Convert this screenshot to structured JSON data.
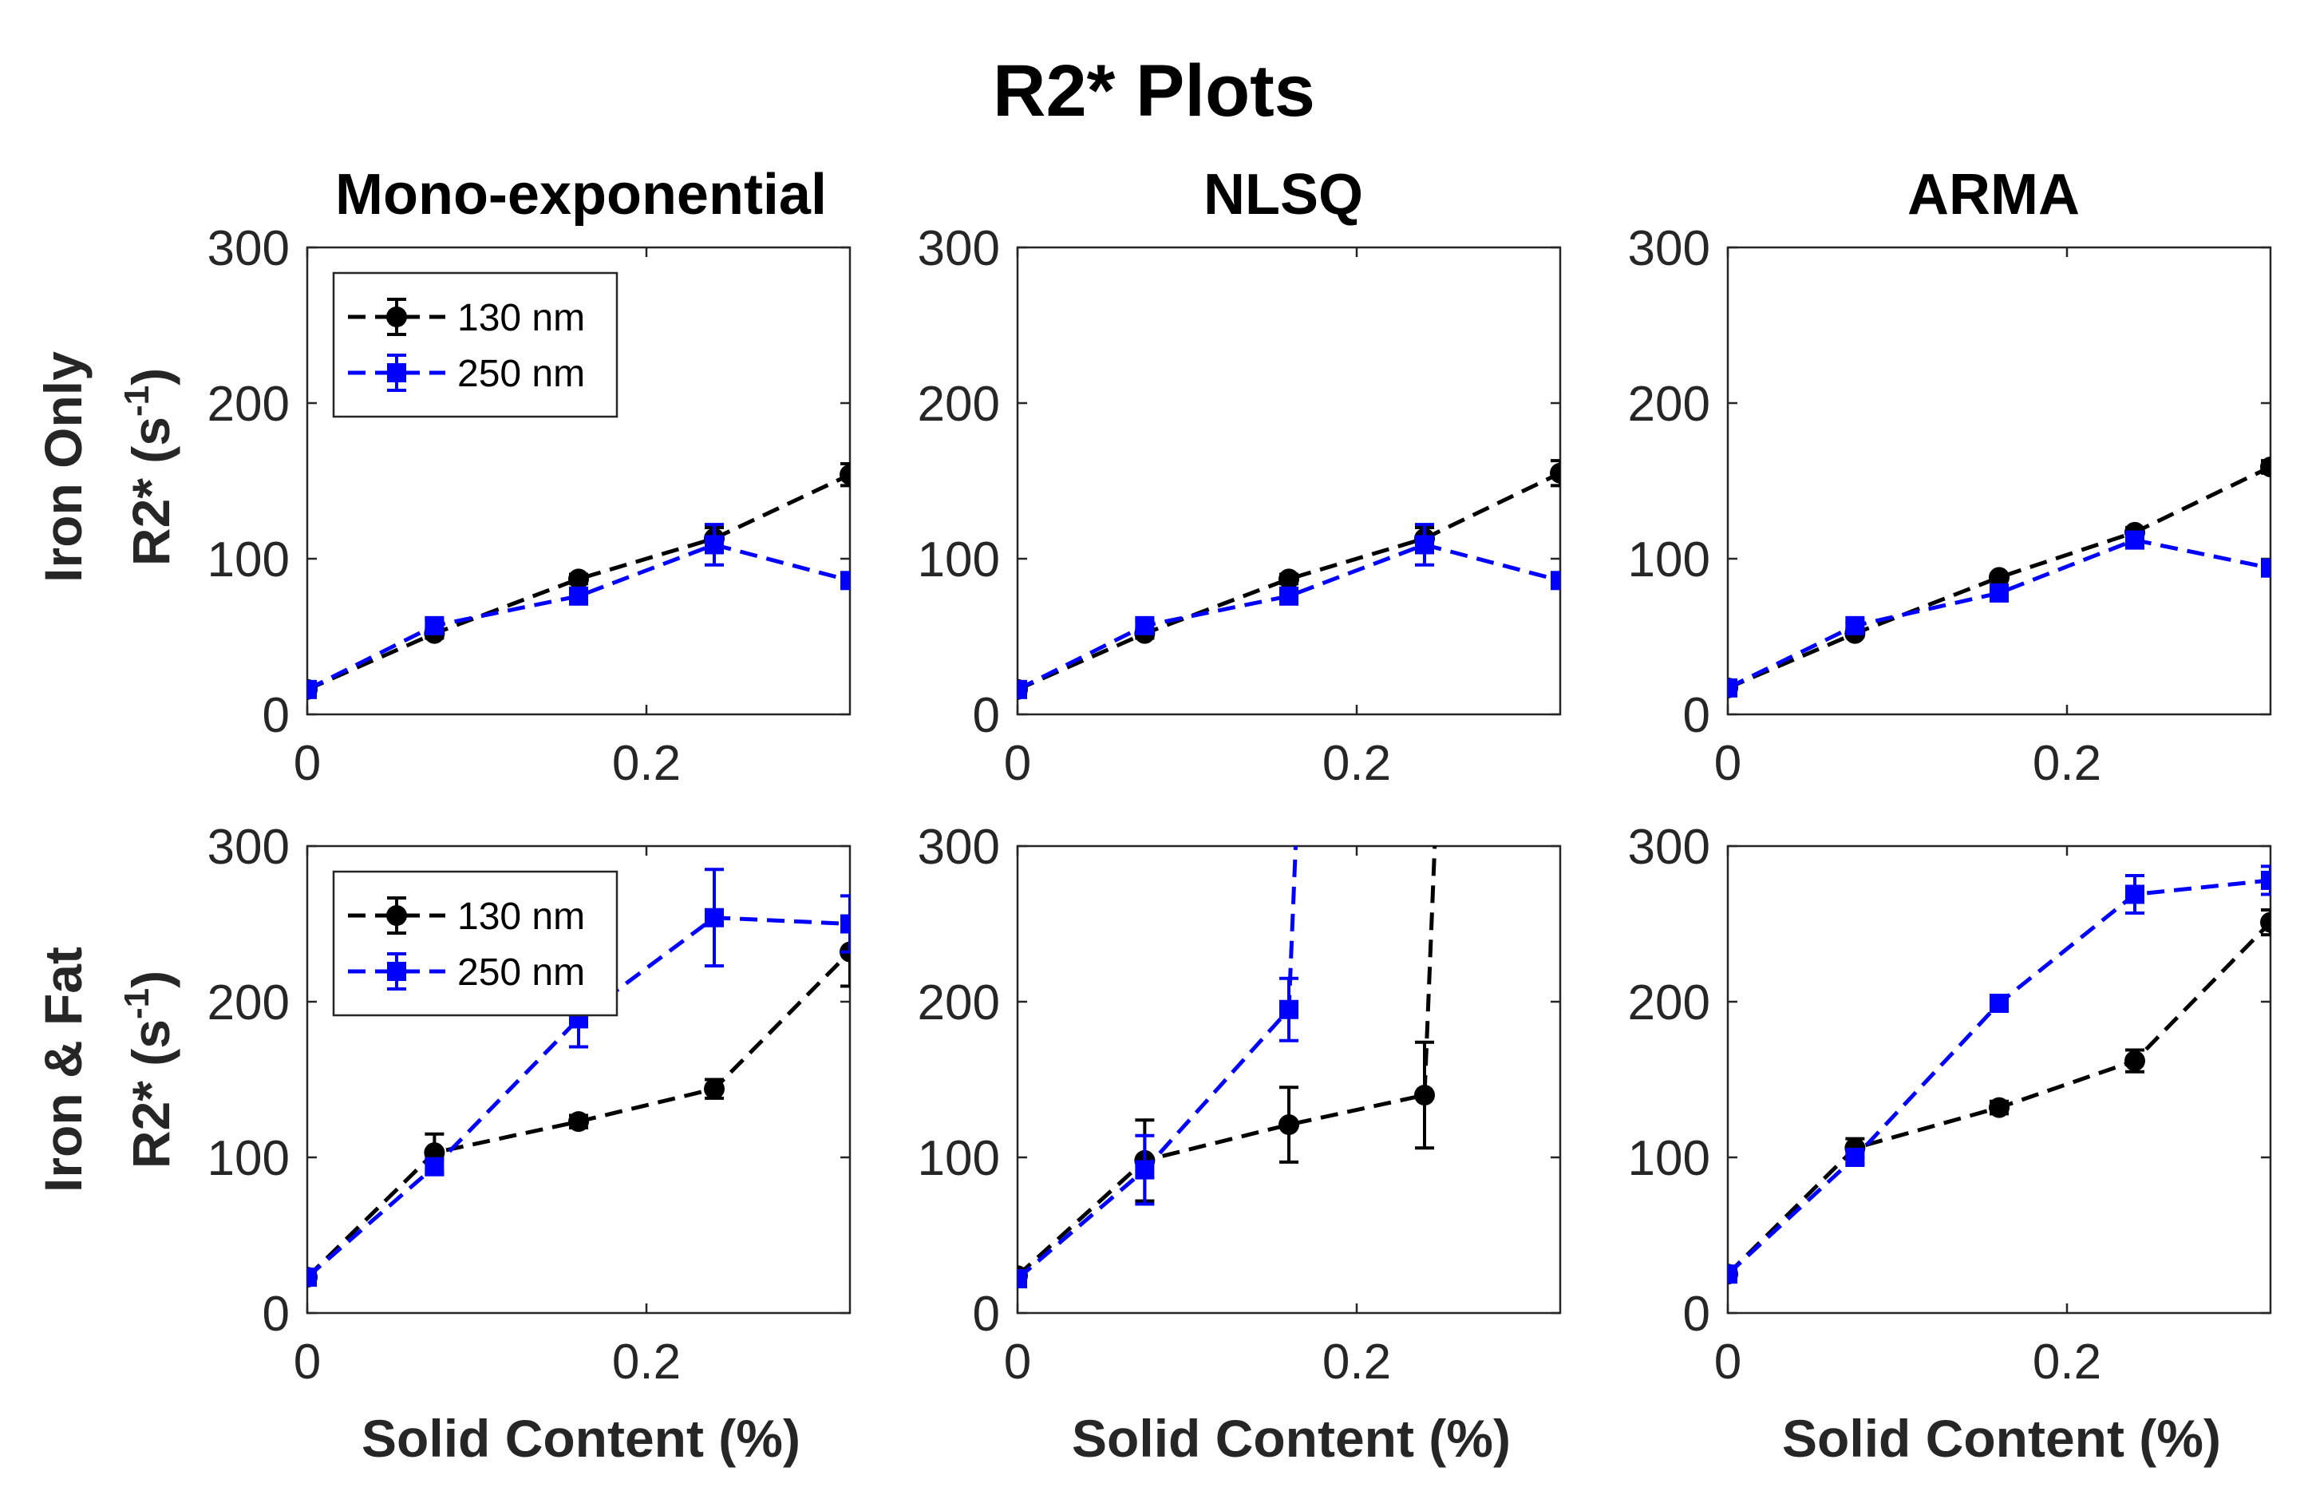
{
  "title": "R2* Plots",
  "columns": [
    "Mono-exponential",
    "NLSQ",
    "ARMA"
  ],
  "rows": [
    {
      "label": "Iron Only",
      "ylabel_main": "R2* (s",
      "ylabel_sup": "-1",
      "ylabel_end": ")"
    },
    {
      "label": "Iron & Fat",
      "ylabel_main": "R2* (s",
      "ylabel_sup": "-1",
      "ylabel_end": ")"
    }
  ],
  "xlabel": "Solid Content (%)",
  "colors": {
    "130 nm": "#000000",
    "250 nm": "#0000ff"
  },
  "chart_data": [
    {
      "type": "line",
      "row": 0,
      "col": 0,
      "title": "Mono-exponential",
      "xlim": [
        0,
        0.32
      ],
      "ylim": [
        0,
        300
      ],
      "xticks": [
        0,
        0.2
      ],
      "xticklabels": [
        "0",
        "0.2"
      ],
      "yticks": [
        0,
        100,
        200,
        300
      ],
      "yticklabels": [
        "0",
        "100",
        "200",
        "300"
      ],
      "legend": {
        "position": "top-left",
        "entries": [
          "130 nm",
          "250 nm"
        ]
      },
      "series": [
        {
          "name": "130 nm",
          "marker": "circle",
          "x": [
            0,
            0.075,
            0.16,
            0.24,
            0.32
          ],
          "y": [
            16,
            52,
            87,
            113,
            154
          ],
          "err": [
            2,
            3,
            3,
            7,
            7
          ]
        },
        {
          "name": "250 nm",
          "marker": "square",
          "x": [
            0,
            0.075,
            0.16,
            0.24,
            0.32
          ],
          "y": [
            16,
            57,
            76,
            109,
            86
          ],
          "err": [
            2,
            4,
            3,
            13,
            3
          ]
        }
      ]
    },
    {
      "type": "line",
      "row": 0,
      "col": 1,
      "title": "NLSQ",
      "xlim": [
        0,
        0.32
      ],
      "ylim": [
        0,
        300
      ],
      "xticks": [
        0,
        0.2
      ],
      "xticklabels": [
        "0",
        "0.2"
      ],
      "yticks": [
        0,
        100,
        200,
        300
      ],
      "yticklabels": [
        "0",
        "100",
        "200",
        "300"
      ],
      "series": [
        {
          "name": "130 nm",
          "marker": "circle",
          "x": [
            0,
            0.075,
            0.16,
            0.24,
            0.32
          ],
          "y": [
            16,
            52,
            87,
            113,
            155
          ],
          "err": [
            2,
            3,
            3,
            7,
            8
          ]
        },
        {
          "name": "250 nm",
          "marker": "square",
          "x": [
            0,
            0.075,
            0.16,
            0.24,
            0.32
          ],
          "y": [
            16,
            57,
            76,
            109,
            86
          ],
          "err": [
            2,
            4,
            3,
            13,
            3
          ]
        }
      ]
    },
    {
      "type": "line",
      "row": 0,
      "col": 2,
      "title": "ARMA",
      "xlim": [
        0,
        0.32
      ],
      "ylim": [
        0,
        300
      ],
      "xticks": [
        0,
        0.2
      ],
      "xticklabels": [
        "0",
        "0.2"
      ],
      "yticks": [
        0,
        100,
        200,
        300
      ],
      "yticklabels": [
        "0",
        "100",
        "200",
        "300"
      ],
      "series": [
        {
          "name": "130 nm",
          "marker": "circle",
          "x": [
            0,
            0.075,
            0.16,
            0.24,
            0.32
          ],
          "y": [
            17,
            52,
            88,
            117,
            159
          ],
          "err": [
            1,
            2,
            2,
            3,
            4
          ]
        },
        {
          "name": "250 nm",
          "marker": "square",
          "x": [
            0,
            0.075,
            0.16,
            0.24,
            0.32
          ],
          "y": [
            17,
            57,
            78,
            112,
            94
          ],
          "err": [
            1,
            2,
            2,
            4,
            2
          ]
        }
      ]
    },
    {
      "type": "line",
      "row": 1,
      "col": 0,
      "title": "",
      "xlim": [
        0,
        0.32
      ],
      "ylim": [
        0,
        300
      ],
      "xticks": [
        0,
        0.2
      ],
      "xticklabels": [
        "0",
        "0.2"
      ],
      "yticks": [
        0,
        100,
        200,
        300
      ],
      "yticklabels": [
        "0",
        "100",
        "200",
        "300"
      ],
      "legend": {
        "position": "top-left",
        "entries": [
          "130 nm",
          "250 nm"
        ]
      },
      "series": [
        {
          "name": "130 nm",
          "marker": "circle",
          "x": [
            0,
            0.075,
            0.16,
            0.24,
            0.32
          ],
          "y": [
            23,
            103,
            123,
            144,
            232
          ],
          "err": [
            2,
            12,
            4,
            6,
            22
          ]
        },
        {
          "name": "250 nm",
          "marker": "square",
          "x": [
            0,
            0.075,
            0.16,
            0.24,
            0.32
          ],
          "y": [
            23,
            94,
            189,
            254,
            250
          ],
          "err": [
            2,
            5,
            18,
            31,
            18
          ]
        }
      ]
    },
    {
      "type": "line",
      "row": 1,
      "col": 1,
      "title": "",
      "xlim": [
        0,
        0.32
      ],
      "ylim": [
        0,
        300
      ],
      "xticks": [
        0,
        0.2
      ],
      "xticklabels": [
        "0",
        "0.2"
      ],
      "yticks": [
        0,
        100,
        200,
        300
      ],
      "yticklabels": [
        "0",
        "100",
        "200",
        "300"
      ],
      "series": [
        {
          "name": "130 nm",
          "marker": "circle",
          "x": [
            0,
            0.075,
            0.16,
            0.24,
            0.246
          ],
          "y": [
            24,
            98,
            121,
            140,
            300
          ],
          "err": [
            2,
            26,
            24,
            34,
            null
          ]
        },
        {
          "name": "250 nm",
          "marker": "square",
          "x": [
            0,
            0.075,
            0.16,
            0.164
          ],
          "y": [
            22,
            92,
            195,
            300
          ],
          "err": [
            2,
            22,
            20,
            null
          ]
        }
      ]
    },
    {
      "type": "line",
      "row": 1,
      "col": 2,
      "title": "",
      "xlim": [
        0,
        0.32
      ],
      "ylim": [
        0,
        300
      ],
      "xticks": [
        0,
        0.2
      ],
      "xticklabels": [
        "0",
        "0.2"
      ],
      "yticks": [
        0,
        100,
        200,
        300
      ],
      "yticklabels": [
        "0",
        "100",
        "200",
        "300"
      ],
      "series": [
        {
          "name": "130 nm",
          "marker": "circle",
          "x": [
            0,
            0.075,
            0.16,
            0.24,
            0.32
          ],
          "y": [
            25,
            106,
            132,
            162,
            251
          ],
          "err": [
            2,
            6,
            4,
            7,
            8
          ]
        },
        {
          "name": "250 nm",
          "marker": "square",
          "x": [
            0,
            0.075,
            0.16,
            0.24,
            0.32
          ],
          "y": [
            25,
            100,
            199,
            269,
            278
          ],
          "err": [
            2,
            4,
            4,
            12,
            9
          ]
        }
      ]
    }
  ]
}
